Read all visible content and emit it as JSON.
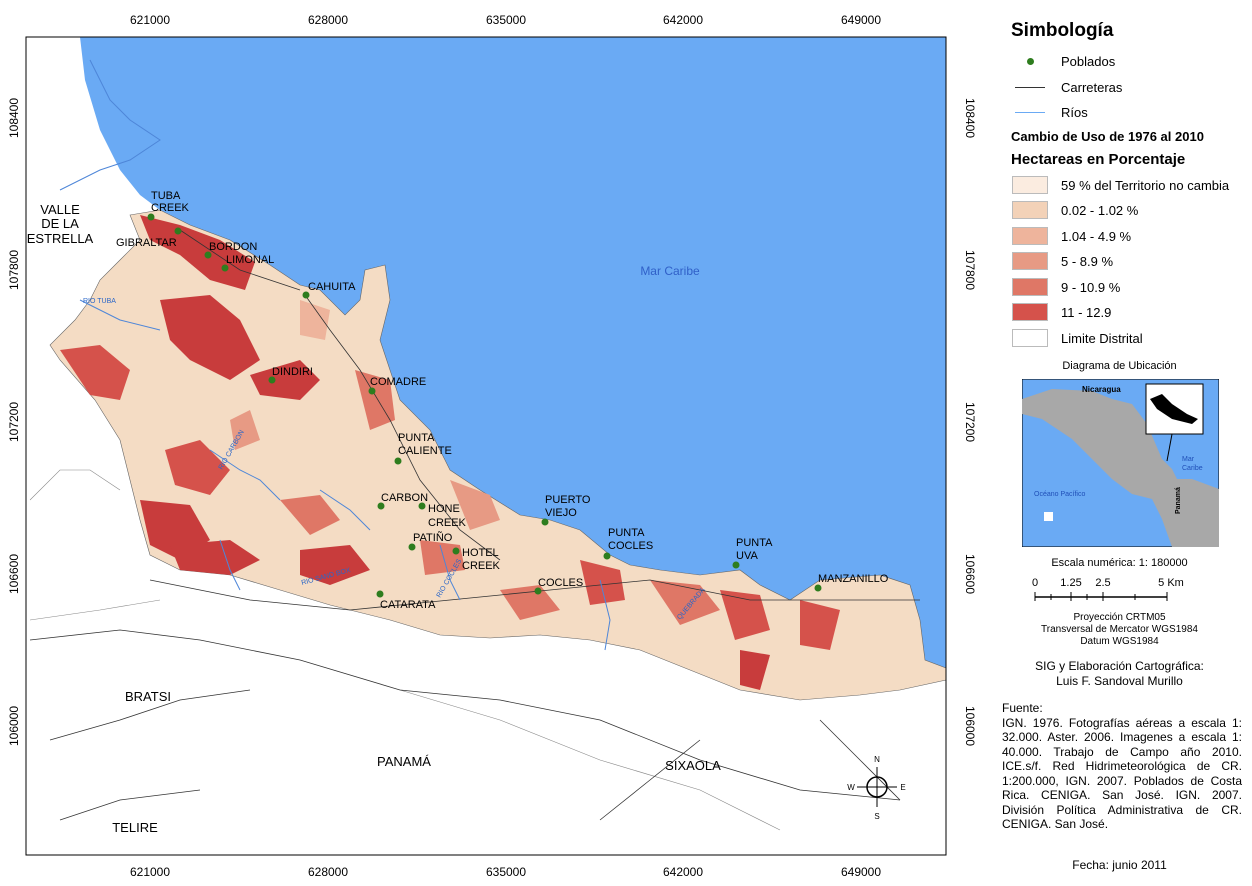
{
  "map": {
    "x_ticks": [
      "621000",
      "628000",
      "635000",
      "642000",
      "649000"
    ],
    "y_ticks": [
      "108400",
      "107800",
      "107200",
      "106600",
      "106000"
    ],
    "sea_label": "Mar Caribe",
    "regions": [
      "VALLE",
      "DE LA",
      "ESTRELLA",
      "BRATSI",
      "PANAMÁ",
      "SIXAOLA",
      "TELIRE"
    ],
    "places": [
      "TUBA",
      "CREEK",
      "GIBRALTAR",
      "BORDON",
      "LIMONAL",
      "CAHUITA",
      "DINDIRI",
      "COMADRE",
      "PUNTA",
      "CALIENTE",
      "CARBON",
      "HONE",
      "CREEK",
      "PATIÑO",
      "HOTEL",
      "CREEK",
      "CATARATA",
      "PUERTO",
      "VIEJO",
      "PUNTA",
      "COCLES",
      "COCLES",
      "PUNTA",
      "UVA",
      "MANZANILLO"
    ],
    "rivers": [
      "RIO TUBA",
      "RIO CARBON",
      "RIO SAND BOX",
      "RIO COCLES",
      "QUEBRADA"
    ],
    "compass": [
      "N",
      "S",
      "E",
      "W"
    ],
    "colors": {
      "sea": "#6aaaf4",
      "no_change": "#f4dcc4",
      "highest": "#c83c3c",
      "village": "#2e7d1e"
    }
  },
  "legend": {
    "title": "Simbología",
    "items": [
      {
        "label": "Poblados",
        "icon": "green-dot-icon"
      },
      {
        "label": "Carreteras",
        "icon": "black-line-icon"
      },
      {
        "label": "Ríos",
        "icon": "blue-line-icon"
      }
    ],
    "change_title": "Cambio de Uso de 1976 al 2010",
    "unit_title": "Hectareas en Porcentaje",
    "classes": [
      {
        "label": "59 % del Territorio no cambia",
        "color": "#fbece0"
      },
      {
        "label": "0.02 - 1.02 %",
        "color": "#f3d2b8"
      },
      {
        "label": "1.04 - 4.9 %",
        "color": "#eeb49c"
      },
      {
        "label": "5 - 8.9 %",
        "color": "#e79a84"
      },
      {
        "label": "9 - 10.9 %",
        "color": "#df7766"
      },
      {
        "label": "11 - 12.9",
        "color": "#d5524b"
      },
      {
        "label": "Limite Distrital",
        "color": "#ffffff"
      }
    ],
    "location_title": "Diagrama de Ubicación",
    "inset_labels": {
      "nicaragua": "Nicaragua",
      "panama": "Panamá",
      "mar": "Mar",
      "caribe": "Caribe",
      "pacifico": "Océano Pacífico"
    },
    "scale_text": "Escala numérica: 1: 180000",
    "scale_ticks": [
      "0",
      "1.25",
      "2.5",
      "5 Km"
    ],
    "projection": [
      "Proyección CRTM05",
      "Transversal de Mercator WGS1984",
      "Datum WGS1984"
    ],
    "credits": [
      "SIG y Elaboración Cartográfica:",
      "Luis F. Sandoval Murillo"
    ],
    "source_title": "Fuente:",
    "source_text": "IGN. 1976. Fotografías aéreas a escala 1: 32.000. Aster. 2006. Imagenes a escala 1: 40.000. Trabajo de Campo año 2010. ICE.s/f. Red Hidrimeteorológica de CR. 1:200.000, IGN. 2007. Poblados de Costa Rica. CENIGA. San José. IGN. 2007. División Política Administrativa de CR. CENIGA. San José.",
    "date": "Fecha: junio 2011"
  }
}
